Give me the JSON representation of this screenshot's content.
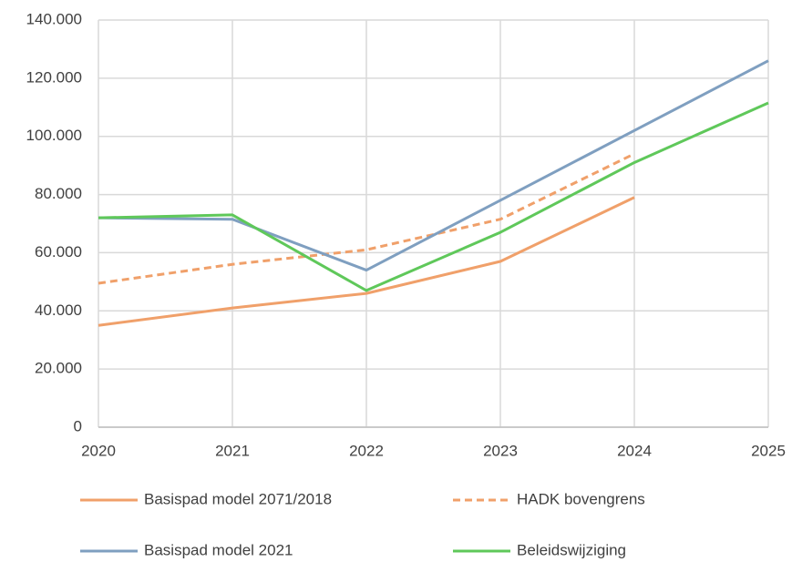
{
  "chart_data": {
    "type": "line",
    "x": [
      2020,
      2021,
      2022,
      2023,
      2024,
      2025
    ],
    "xlim": [
      2020,
      2025
    ],
    "xticks": [
      2020,
      2021,
      2022,
      2023,
      2024,
      2025
    ],
    "ylim": [
      0,
      140000
    ],
    "yticks": [
      0,
      {
        "value": 20000,
        "label": "20.000"
      },
      {
        "value": 40000,
        "label": "40.000"
      },
      {
        "value": 60000,
        "label": "60.000"
      },
      {
        "value": 80000,
        "label": "80.000"
      },
      {
        "value": 100000,
        "label": "100.000"
      },
      {
        "value": 120000,
        "label": "120.000"
      },
      {
        "value": 140000,
        "label": "140.000"
      }
    ],
    "grid": true,
    "legend": "bottom",
    "series": [
      {
        "name": "Basispad model 2071/2018",
        "color": "#f0a06a",
        "style": "solid",
        "values": [
          35000,
          41000,
          46000,
          57000,
          79000,
          null
        ]
      },
      {
        "name": "HADK bovengrens",
        "color": "#f0a06a",
        "style": "dashed",
        "values": [
          49500,
          56000,
          61000,
          71500,
          94000,
          null
        ]
      },
      {
        "name": "Basispad model 2021",
        "color": "#7f9fc0",
        "style": "solid",
        "values": [
          72000,
          71500,
          54000,
          78000,
          102000,
          126000
        ]
      },
      {
        "name": "Beleidswijziging",
        "color": "#5fc85a",
        "style": "solid",
        "values": [
          72000,
          73000,
          47000,
          67000,
          91000,
          111500
        ]
      }
    ]
  }
}
